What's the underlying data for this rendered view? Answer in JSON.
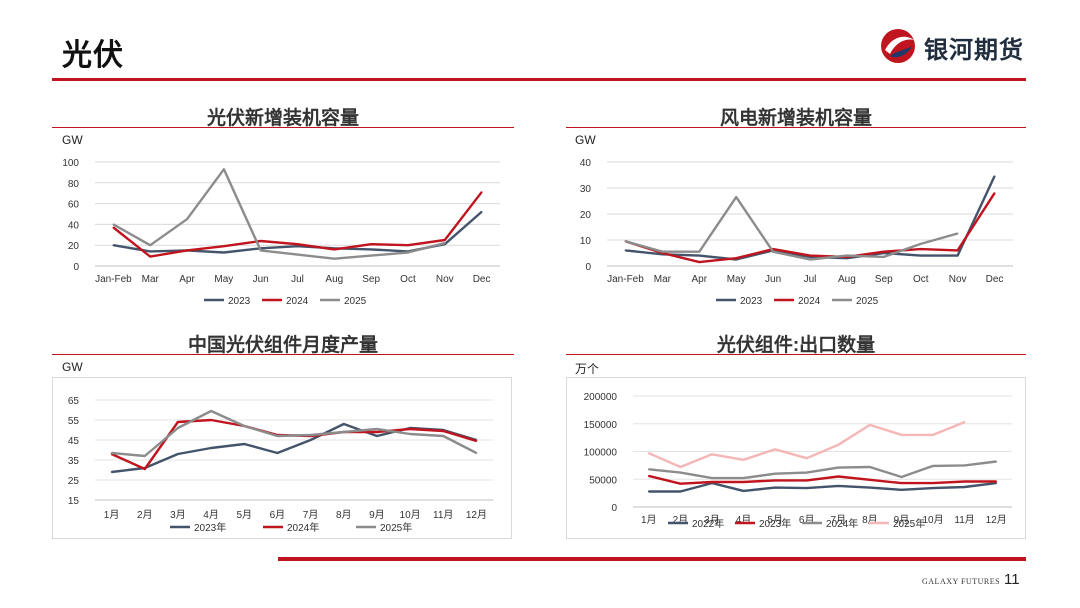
{
  "header": {
    "title": "光伏",
    "logo_text": "银河期货"
  },
  "footer": {
    "brand": "GALAXY FUTURES",
    "page_number": "11"
  },
  "colors": {
    "accent": "#c0141e",
    "series_2023": "#44546a",
    "series_2024": "#c0141e",
    "series_2025": "#8c8c8c",
    "series_extra": "#f4b6b6"
  },
  "chart_data": [
    {
      "id": "pv_install",
      "type": "line",
      "title": "光伏新增装机容量",
      "unit": "GW",
      "categories": [
        "Jan-Feb",
        "Mar",
        "Apr",
        "May",
        "Jun",
        "Jul",
        "Aug",
        "Sep",
        "Oct",
        "Nov",
        "Dec"
      ],
      "yticks": [
        0,
        20,
        40,
        60,
        80,
        100
      ],
      "ylim": [
        0,
        100
      ],
      "series": [
        {
          "name": "2023",
          "color": "#44546a",
          "values": [
            20,
            14,
            15,
            13,
            17,
            19,
            17,
            16,
            14,
            21,
            52
          ]
        },
        {
          "name": "2024",
          "color": "#c0141e",
          "values": [
            37,
            9,
            15,
            19,
            24,
            21,
            16,
            21,
            20,
            25,
            71
          ]
        },
        {
          "name": "2025",
          "color": "#8c8c8c",
          "values": [
            40,
            20,
            45,
            93,
            15,
            11,
            7,
            10,
            13,
            22,
            null
          ]
        }
      ],
      "legend": "bottom"
    },
    {
      "id": "wind_install",
      "type": "line",
      "title": "风电新增装机容量",
      "unit": "GW",
      "categories": [
        "Jan-Feb",
        "Mar",
        "Apr",
        "May",
        "Jun",
        "Jul",
        "Aug",
        "Sep",
        "Oct",
        "Nov",
        "Dec"
      ],
      "yticks": [
        0,
        10,
        20,
        30,
        40
      ],
      "ylim": [
        0,
        40
      ],
      "series": [
        {
          "name": "2023",
          "color": "#44546a",
          "values": [
            6,
            4.5,
            4,
            2.5,
            6,
            3.5,
            3,
            5,
            4,
            4,
            34.5
          ]
        },
        {
          "name": "2024",
          "color": "#c0141e",
          "values": [
            9.5,
            5,
            1.5,
            3,
            6.5,
            4,
            3.5,
            5.5,
            6.5,
            6,
            28
          ]
        },
        {
          "name": "2025",
          "color": "#8c8c8c",
          "values": [
            9.5,
            5.5,
            5.5,
            26.5,
            5.5,
            2.5,
            4,
            3.5,
            8.5,
            12.5,
            null
          ]
        }
      ],
      "legend": "bottom"
    },
    {
      "id": "module_output",
      "type": "line",
      "title": "中国光伏组件月度产量",
      "unit": "GW",
      "categories": [
        "1月",
        "2月",
        "3月",
        "4月",
        "5月",
        "6月",
        "7月",
        "8月",
        "9月",
        "10月",
        "11月",
        "12月"
      ],
      "yticks": [
        15,
        25,
        35,
        45,
        55,
        65
      ],
      "ylim": [
        15,
        65
      ],
      "series": [
        {
          "name": "2023年",
          "color": "#44546a",
          "values": [
            29,
            31,
            38,
            41,
            43,
            38.5,
            45,
            53,
            47,
            51,
            50,
            45
          ]
        },
        {
          "name": "2024年",
          "color": "#c0141e",
          "values": [
            38,
            30.5,
            54,
            55,
            52,
            47.5,
            47,
            49,
            49,
            50.5,
            49.5,
            44.5
          ]
        },
        {
          "name": "2025年",
          "color": "#8c8c8c",
          "values": [
            38.5,
            37,
            51,
            59.5,
            52,
            47,
            47.5,
            49,
            50.5,
            48,
            47,
            38.5
          ]
        }
      ],
      "legend": "bottom"
    },
    {
      "id": "module_export",
      "type": "line",
      "title": "光伏组件:出口数量",
      "unit": "万个",
      "categories": [
        "1月",
        "2月",
        "3月",
        "4月",
        "5月",
        "6月",
        "7月",
        "8月",
        "9月",
        "10月",
        "11月",
        "12月"
      ],
      "yticks": [
        0,
        50000,
        100000,
        150000,
        200000
      ],
      "ylim": [
        0,
        200000
      ],
      "series": [
        {
          "name": "2022年",
          "color": "#44546a",
          "values": [
            28000,
            28000,
            43000,
            29000,
            35000,
            34000,
            38000,
            35000,
            31000,
            34000,
            36000,
            43000
          ]
        },
        {
          "name": "2023年",
          "color": "#c0141e",
          "values": [
            56000,
            42000,
            45000,
            45000,
            48000,
            48000,
            55000,
            49000,
            43000,
            43000,
            46000,
            46000
          ]
        },
        {
          "name": "2024年",
          "color": "#8c8c8c",
          "values": [
            68000,
            62000,
            52000,
            52000,
            60000,
            62000,
            71000,
            72000,
            54000,
            74000,
            75000,
            82000
          ]
        },
        {
          "name": "2025年",
          "color": "#f4b6b6",
          "values": [
            97000,
            72000,
            95000,
            85000,
            104000,
            88000,
            112000,
            148000,
            130000,
            130000,
            153000,
            null
          ]
        }
      ],
      "legend": "bottom"
    }
  ]
}
